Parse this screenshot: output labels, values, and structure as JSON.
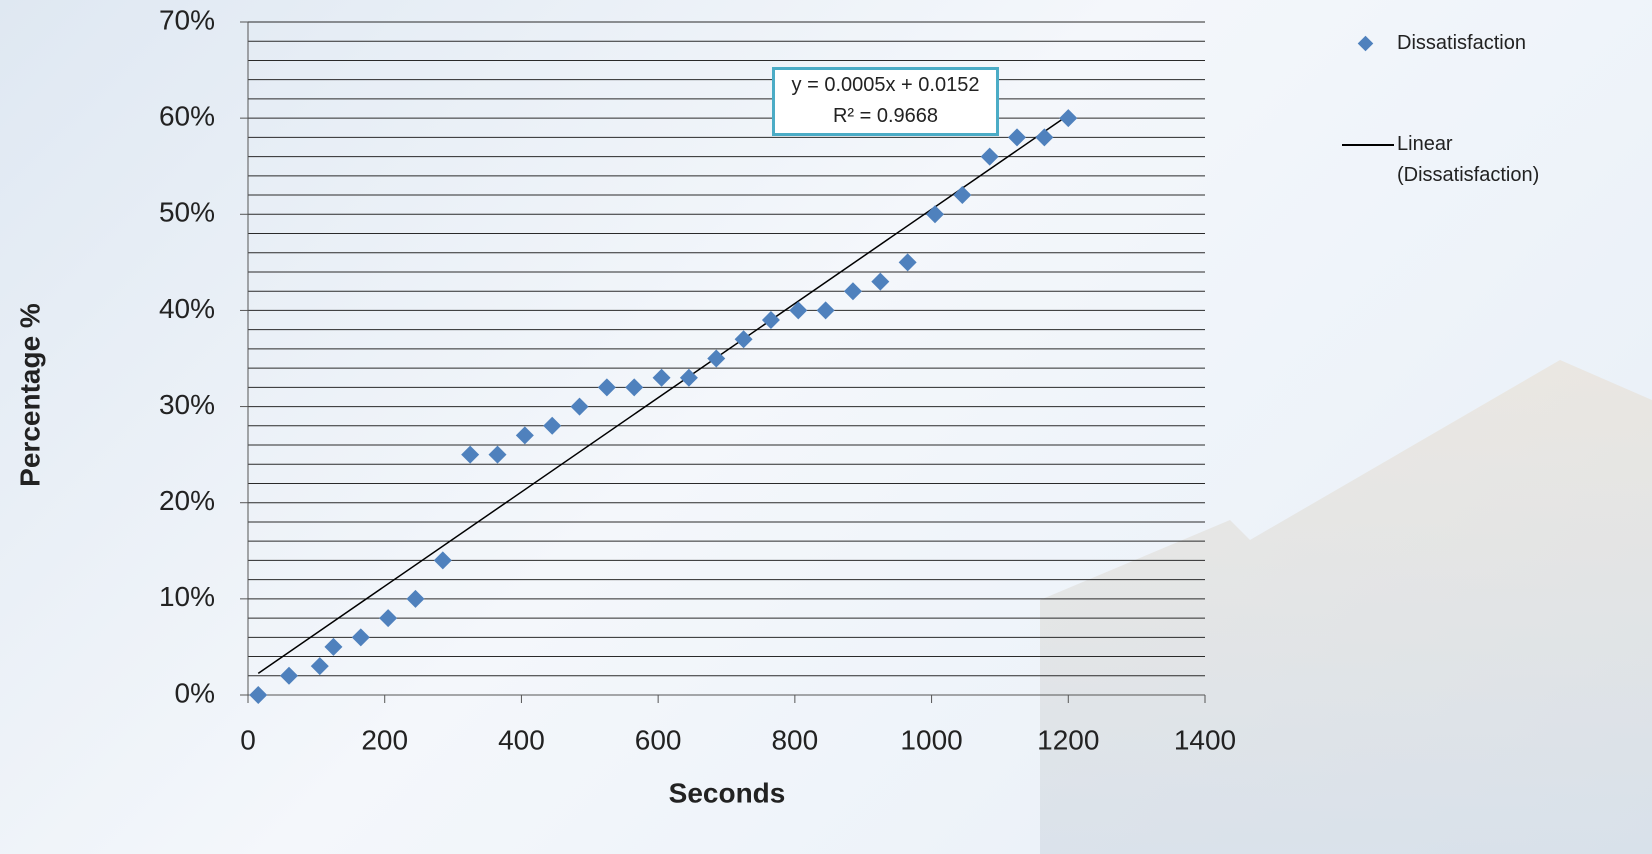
{
  "chart_data": {
    "type": "scatter",
    "x_label": "Seconds",
    "y_label": "Percentage %",
    "series": [
      {
        "name": "Dissatisfaction",
        "color": "#4f81bd",
        "x": [
          15,
          60,
          105,
          125,
          165,
          205,
          245,
          285,
          325,
          365,
          405,
          445,
          485,
          525,
          565,
          605,
          645,
          685,
          725,
          765,
          805,
          845,
          885,
          925,
          965,
          1005,
          1045,
          1085,
          1125,
          1165,
          1200
        ],
        "values": [
          0,
          2,
          3,
          5,
          6,
          8,
          10,
          14,
          25,
          25,
          27,
          28,
          30,
          32,
          32,
          33,
          33,
          35,
          37,
          39,
          40,
          40,
          42,
          43,
          45,
          50,
          52,
          56,
          58,
          58,
          60
        ]
      }
    ],
    "trendline": {
      "name": "Linear (Dissatisfaction)",
      "color": "#000000",
      "equation": "y = 0.0005x + 0.0152",
      "r_squared": "R² = 0.9668"
    },
    "xlim": [
      0,
      1400
    ],
    "xticks": [
      0,
      200,
      400,
      600,
      800,
      1000,
      1200,
      1400
    ],
    "ylim": [
      0,
      70
    ],
    "yticks": [
      {
        "value": 0,
        "label": "0%"
      },
      {
        "value": 10,
        "label": "10%"
      },
      {
        "value": 20,
        "label": "20%"
      },
      {
        "value": 30,
        "label": "30%"
      },
      {
        "value": 40,
        "label": "40%"
      },
      {
        "value": 50,
        "label": "50%"
      },
      {
        "value": 60,
        "label": "60%"
      },
      {
        "value": 70,
        "label": "70%"
      }
    ],
    "grid": true,
    "minor_grid_step": 2,
    "legend": "top-right"
  }
}
